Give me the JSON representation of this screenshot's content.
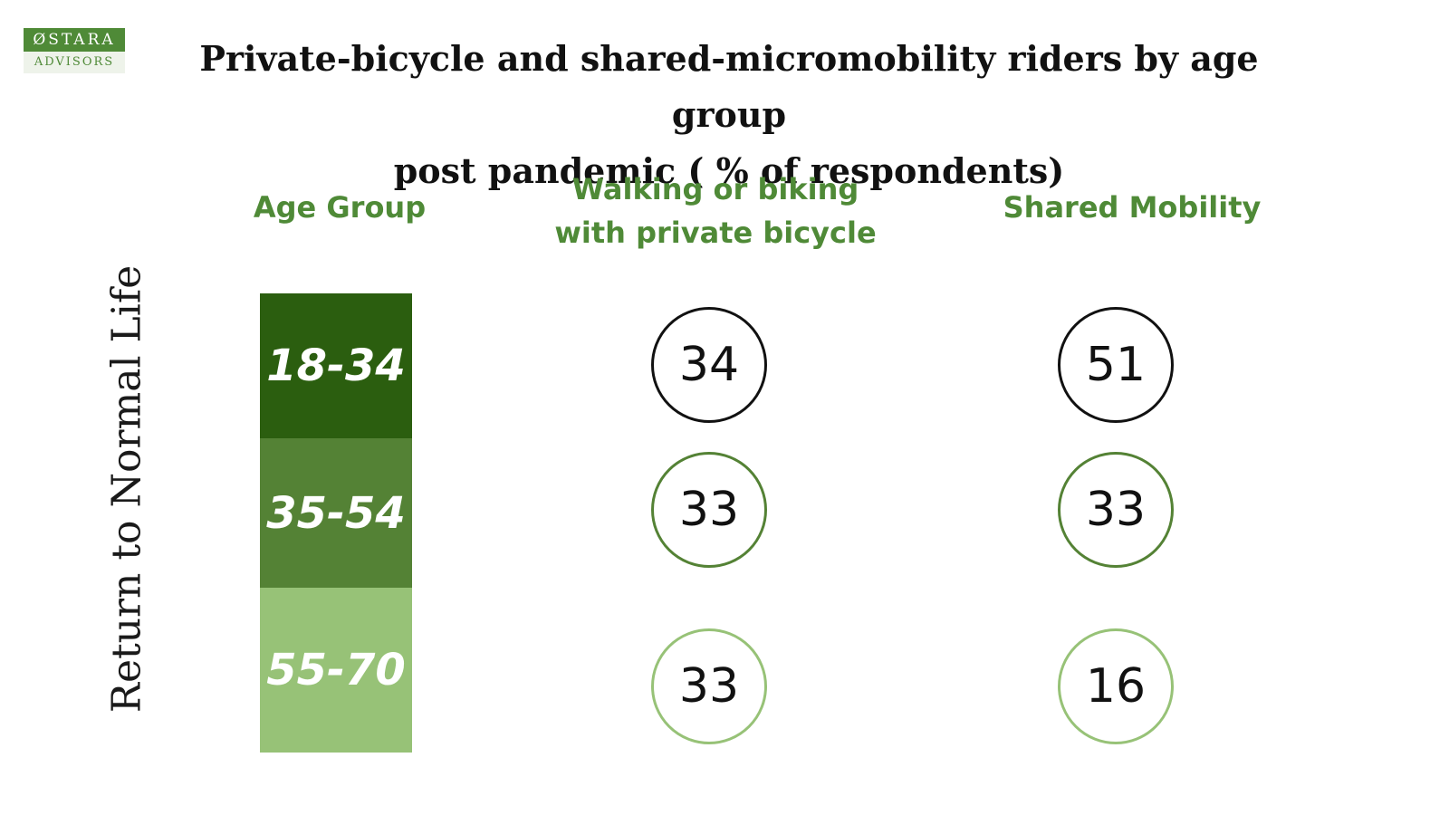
{
  "logo": {
    "top": "ØSTARA",
    "bottom": "ADVISORS"
  },
  "chart_data": {
    "type": "table",
    "title": [
      "Private-bicycle and shared-micromobility riders by age group",
      "post pandemic ( % of respondents)"
    ],
    "side_label": "Return to Normal Life",
    "headers": {
      "age": "Age Group",
      "private": [
        "Walking or biking",
        "with private bicycle"
      ],
      "shared": "Shared Mobility"
    },
    "categories": [
      "18-34",
      "35-54",
      "55-70"
    ],
    "series": [
      {
        "key": "private",
        "values": [
          34,
          33,
          33
        ]
      },
      {
        "key": "shared",
        "values": [
          51,
          33,
          16
        ]
      }
    ],
    "colors": {
      "rows": [
        "#2b5e0f",
        "#548235",
        "#97c277"
      ],
      "circle_borders": [
        "#111111",
        "#548235",
        "#97c277"
      ],
      "header": "#4f8a37"
    }
  }
}
